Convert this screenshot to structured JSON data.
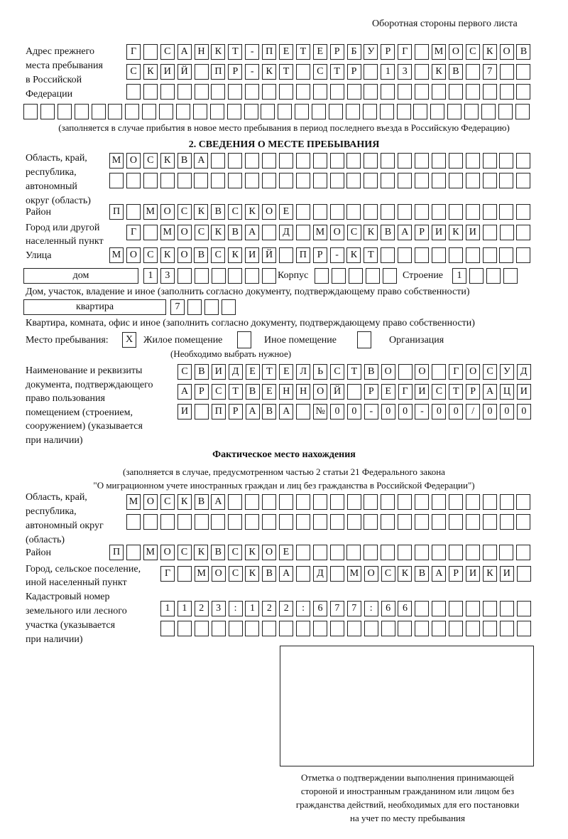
{
  "header": "Оборотная стороны первого листа",
  "prev_address": {
    "label": [
      "Адрес прежнего",
      "места пребывания",
      "в Российской",
      "Федерации"
    ],
    "rows": [
      "Г САНКТ-ПЕТЕРБУРГ МОСКОВ",
      "СКИЙ ПР-КТ СТР 13 КВ 7",
      "",
      ""
    ],
    "note": "(заполняется в случае прибытия в новое место пребывания в период последнего въезда в Российскую Федерацию)"
  },
  "section2": {
    "title": "2. СВЕДЕНИЯ О МЕСТЕ ПРЕБЫВАНИЯ",
    "region_label": [
      "Область, край,",
      "республика,",
      "автономный",
      "округ (область)"
    ],
    "region_rows": [
      "МОСКВА",
      ""
    ],
    "district_label": "Район",
    "district": "П МОСКВСКОЕ",
    "city_label": [
      "Город или другой",
      "населенный пункт"
    ],
    "city": "Г МОСКВА Д МОСКВАРИКИ",
    "street_label": "Улица",
    "street": "МОСКОВСКИЙ ПР-КТ",
    "house_type": "дом",
    "house": "13",
    "korpus_label": "Корпус",
    "korpus": "",
    "building_label": "Строение",
    "building": "1",
    "house_note": "Дом, участок, владение и иное (заполнить согласно документу, подтверждающему право собственности)",
    "apt_type": "квартира",
    "apt": "7",
    "apt_note": "Квартира, комната, офис и иное (заполнить согласно документу, подтверждающему право собственности)",
    "stay_label": "Место пребывания:",
    "opt1_mark": "X",
    "opt1": "Жилое помещение",
    "opt2_mark": "",
    "opt2": "Иное помещение",
    "opt3_mark": "",
    "opt3": "Организация",
    "choose_note": "(Необходимо выбрать нужное)",
    "doc_label": [
      "Наименование и реквизиты",
      "документа, подтверждающего",
      "право пользования",
      "помещением (строением,",
      "сооружением) (указывается",
      "при наличии)"
    ],
    "doc_rows": [
      "СВИДЕТЕЛЬСТВО О ГОСУД",
      "АРСТВЕННОЙ РЕГИСТРАЦИ",
      "И ПРАВА №00-00-00/000"
    ]
  },
  "actual": {
    "title": "Фактическое место нахождения",
    "note": [
      "(заполняется в случае, предусмотренном частью 2 статьи 21 Федерального закона",
      "\"О миграционном учете иностранных граждан и лиц без гражданства в Российской Федерации\")"
    ],
    "region_label": [
      "Область, край,",
      "республика,",
      "автономный округ",
      "(область)"
    ],
    "region_rows": [
      "МОСКВА",
      ""
    ],
    "district_label": "Район",
    "district": "П МОСКВСКОЕ",
    "city_label": [
      "Город, сельское поселение,",
      "иной населенный пункт"
    ],
    "city": "Г МОСКВА Д МОСКВАРИКИ",
    "cadastral_label": [
      "Кадастровый номер",
      "земельного или лесного",
      "участка (указывается",
      "при наличии)"
    ],
    "cadastral_rows": [
      "1123:122:677:66",
      ""
    ]
  },
  "stamp_caption": [
    "Отметка о подтверждении выполнения принимающей",
    "стороной и иностранным гражданином или лицом без",
    "гражданства действий, необходимых для его постановки",
    "на учет по месту пребывания"
  ]
}
